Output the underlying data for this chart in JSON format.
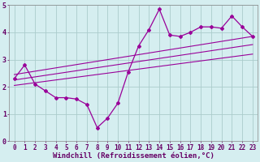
{
  "xlabel": "Windchill (Refroidissement éolien,°C)",
  "ylabel": "",
  "xlim": [
    -0.5,
    23.5
  ],
  "ylim": [
    0,
    5
  ],
  "xticks": [
    0,
    1,
    2,
    3,
    4,
    5,
    6,
    7,
    8,
    9,
    10,
    11,
    12,
    13,
    14,
    15,
    16,
    17,
    18,
    19,
    20,
    21,
    22,
    23
  ],
  "yticks": [
    0,
    1,
    2,
    3,
    4,
    5
  ],
  "bg_color": "#d5eef0",
  "line_color": "#990099",
  "grid_color": "#aacccc",
  "line1_x": [
    0,
    1,
    2,
    3,
    4,
    5,
    6,
    7,
    8,
    9,
    10,
    11,
    12,
    13,
    14,
    15,
    16,
    17,
    18,
    19,
    20,
    21,
    22,
    23
  ],
  "line1_y": [
    2.3,
    2.8,
    2.1,
    1.85,
    1.6,
    1.6,
    1.55,
    1.35,
    0.5,
    0.85,
    1.4,
    2.55,
    3.5,
    4.1,
    4.85,
    3.9,
    3.85,
    4.0,
    4.2,
    4.2,
    4.15,
    4.6,
    4.2,
    3.85
  ],
  "line2_x": [
    0,
    23
  ],
  "line2_y": [
    2.05,
    3.2
  ],
  "line3_x": [
    0,
    23
  ],
  "line3_y": [
    2.25,
    3.55
  ],
  "line4_x": [
    0,
    23
  ],
  "line4_y": [
    2.45,
    3.85
  ],
  "tick_fontsize": 5.5,
  "xlabel_fontsize": 6.5
}
